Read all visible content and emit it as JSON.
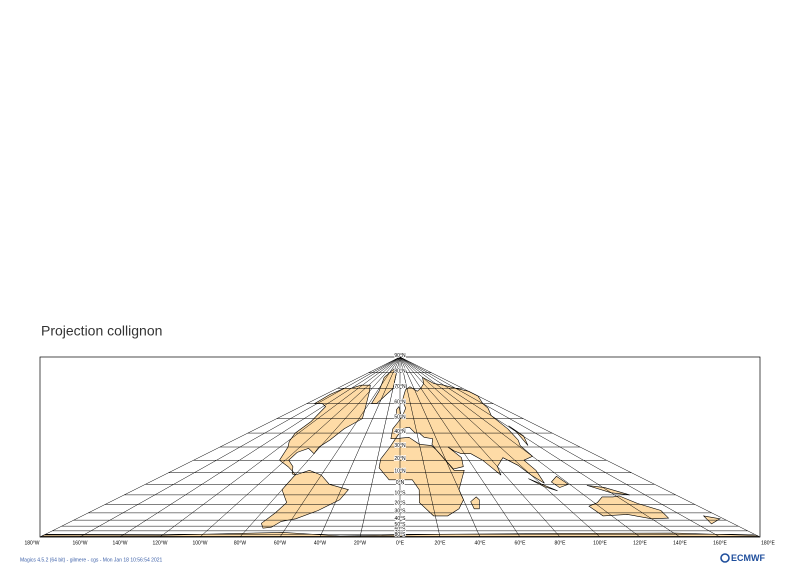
{
  "title": "Projection collignon",
  "map": {
    "projection": "collignon",
    "land_color": "#fedba6",
    "coast_color": "#000000",
    "grid_color": "#000000",
    "latitudes": [
      {
        "value": 90,
        "label": "90°N"
      },
      {
        "value": 80,
        "label": "80°N"
      },
      {
        "value": 70,
        "label": "70°N"
      },
      {
        "value": 60,
        "label": "60°N"
      },
      {
        "value": 50,
        "label": "50°N"
      },
      {
        "value": 40,
        "label": "40°N"
      },
      {
        "value": 30,
        "label": "30°N"
      },
      {
        "value": 20,
        "label": "20°N"
      },
      {
        "value": 10,
        "label": "10°N"
      },
      {
        "value": 0,
        "label": "0°N"
      },
      {
        "value": -10,
        "label": "10°S"
      },
      {
        "value": -20,
        "label": "20°S"
      },
      {
        "value": -30,
        "label": "30°S"
      },
      {
        "value": -40,
        "label": "40°S"
      },
      {
        "value": -50,
        "label": "50°S"
      },
      {
        "value": -60,
        "label": "60°S"
      },
      {
        "value": -70,
        "label": "70°S"
      },
      {
        "value": -80,
        "label": "80°S"
      }
    ],
    "longitudes": [
      {
        "value": -180,
        "label": "180°W"
      },
      {
        "value": -160,
        "label": "160°W"
      },
      {
        "value": -140,
        "label": "140°W"
      },
      {
        "value": -120,
        "label": "120°W"
      },
      {
        "value": -100,
        "label": "100°W"
      },
      {
        "value": -80,
        "label": "80°W"
      },
      {
        "value": -60,
        "label": "60°W"
      },
      {
        "value": -40,
        "label": "40°W"
      },
      {
        "value": -20,
        "label": "20°W"
      },
      {
        "value": 0,
        "label": "0°E"
      },
      {
        "value": 20,
        "label": "20°E"
      },
      {
        "value": 40,
        "label": "40°E"
      },
      {
        "value": 60,
        "label": "60°E"
      },
      {
        "value": 80,
        "label": "80°E"
      },
      {
        "value": 100,
        "label": "100°E"
      },
      {
        "value": 120,
        "label": "120°E"
      },
      {
        "value": 140,
        "label": "140°E"
      },
      {
        "value": 160,
        "label": "160°E"
      },
      {
        "value": 180,
        "label": "180°E"
      }
    ]
  },
  "footer": {
    "text": "Magics 4.5.2 (64 bit) - gilmere - cgs - Mon Jan 18 10:56:54 2021",
    "logo": "ECMWF"
  }
}
